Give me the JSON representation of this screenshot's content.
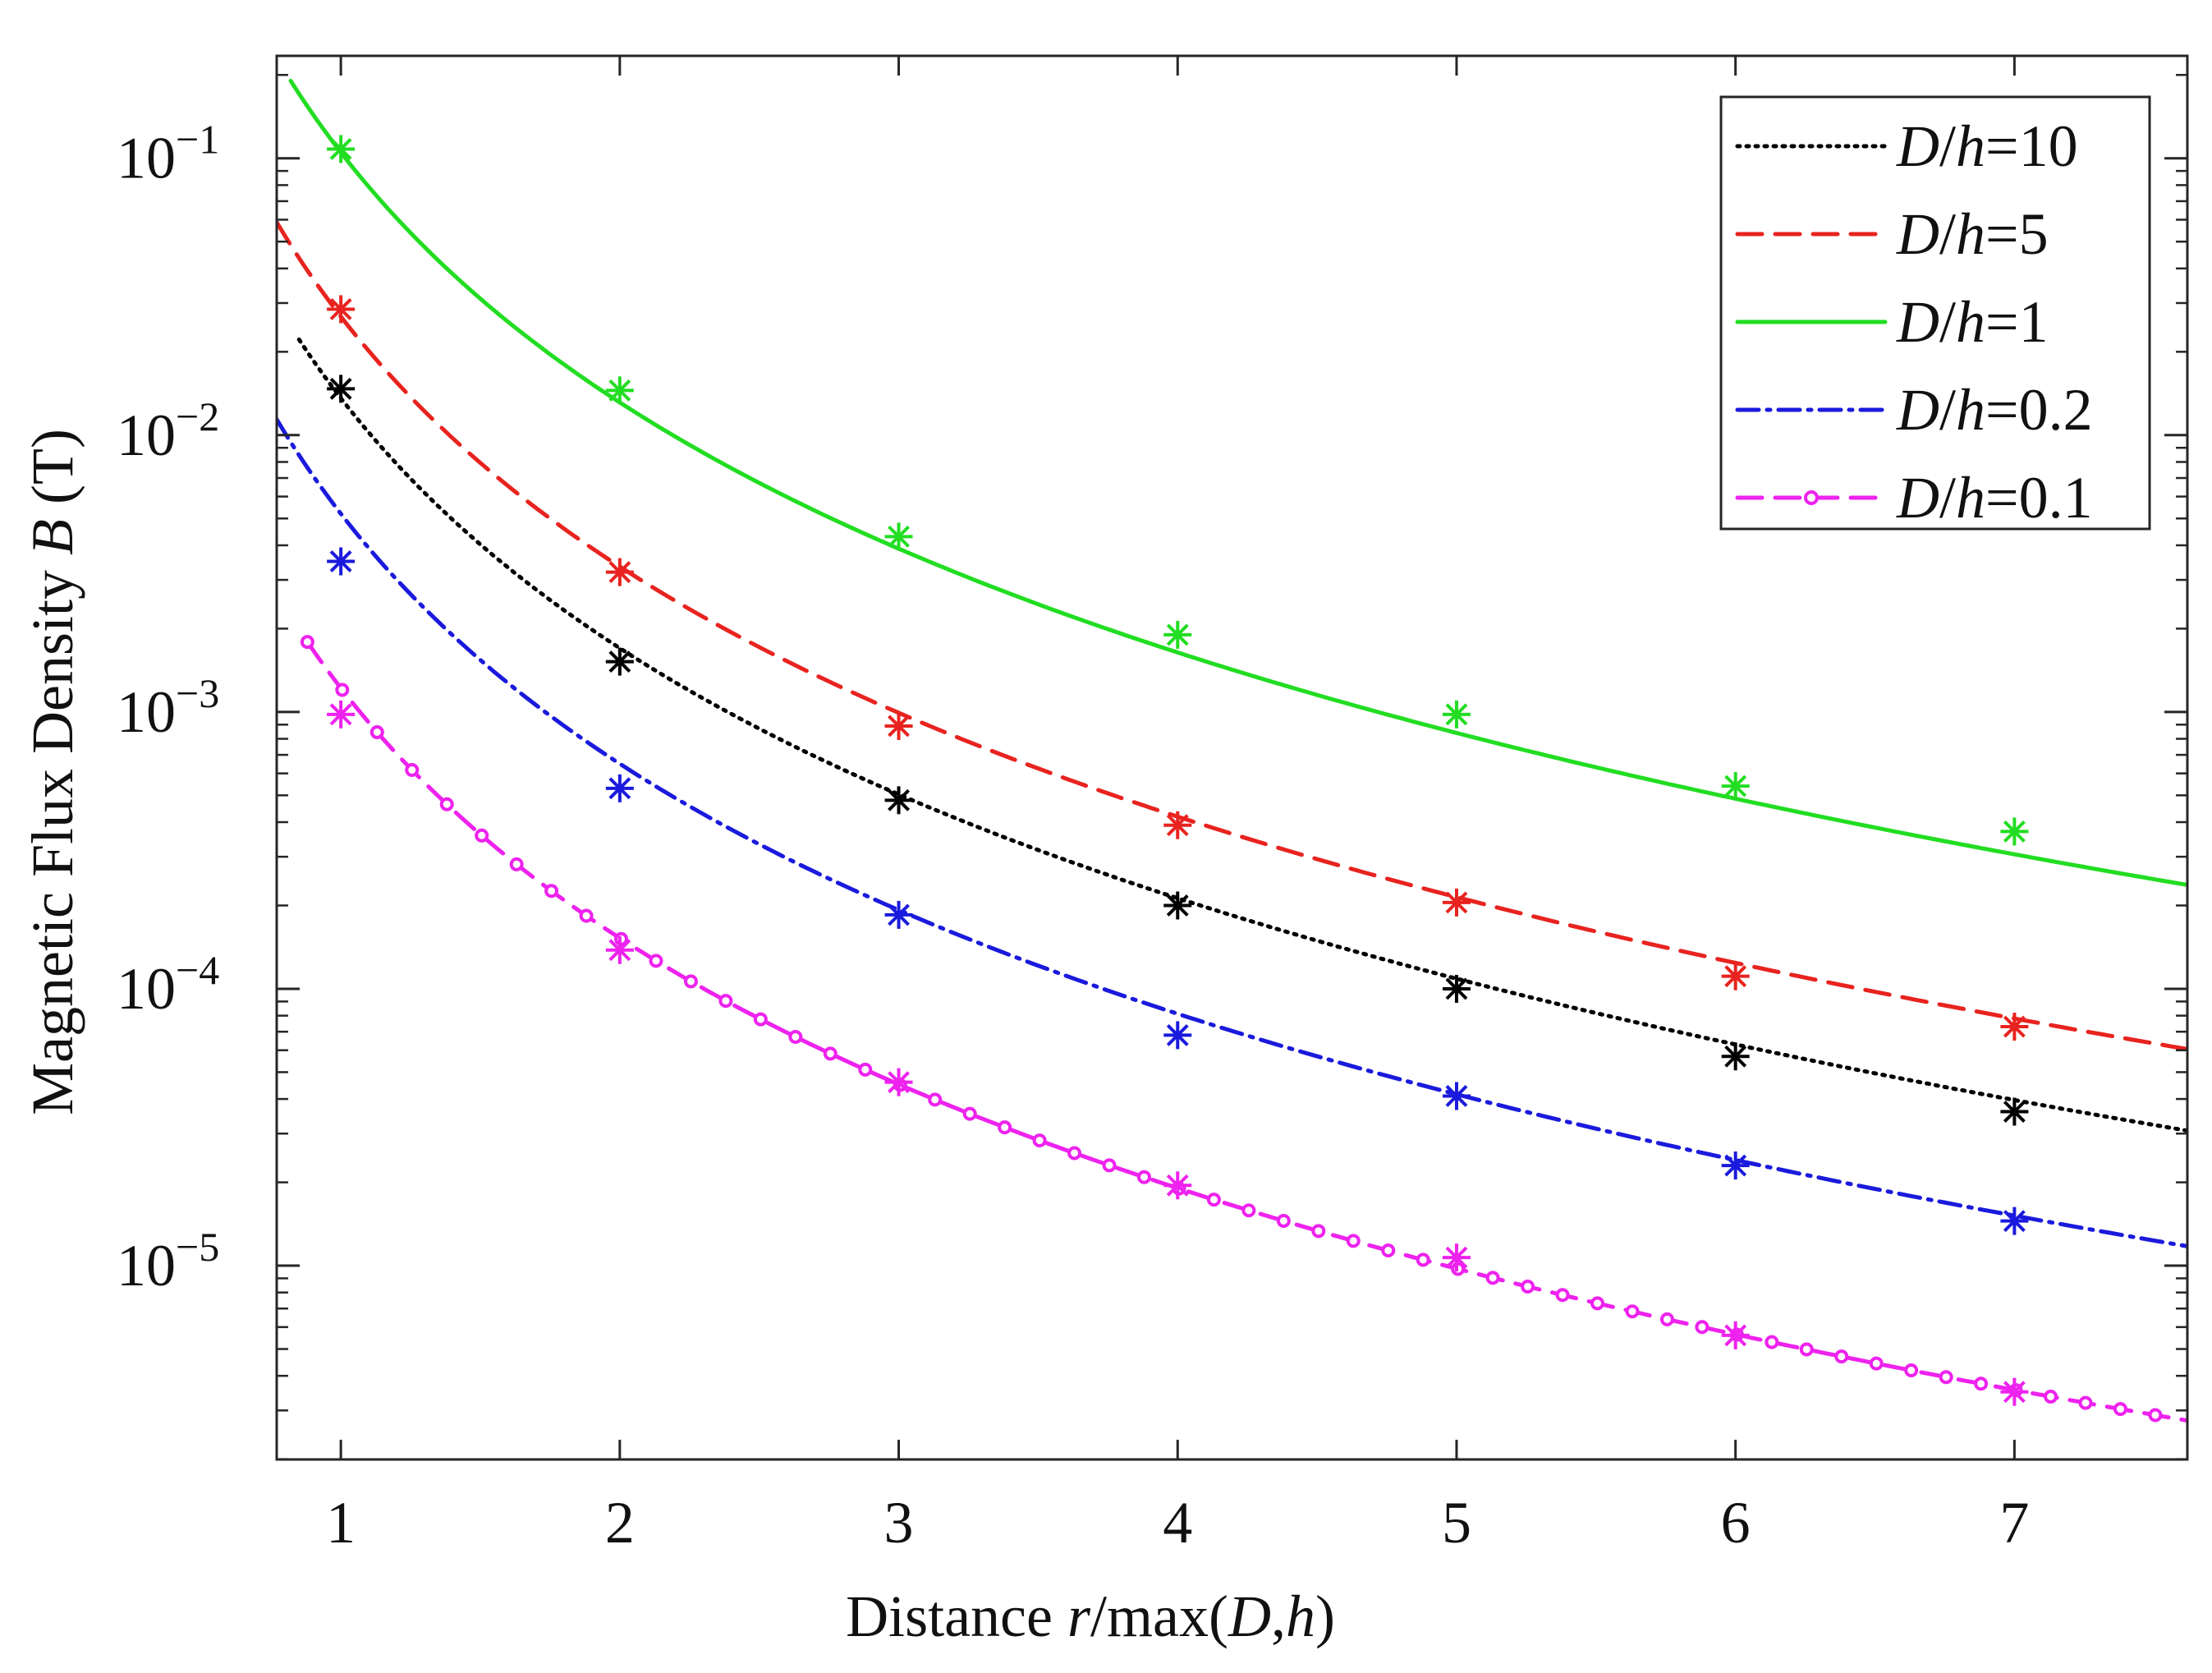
{
  "chart_data": {
    "type": "line",
    "title": "",
    "xlabel": {
      "prefix": "Distance ",
      "r": "r",
      "mid": "/max(",
      "D": "D",
      "comma": ",",
      "h": "h",
      "suffix": ")"
    },
    "ylabel": {
      "prefix": "Magnetic Flux Density ",
      "B": "B",
      "suffix": " (T)"
    },
    "x_scale": "linear",
    "y_scale": "log",
    "xlim": [
      0.77,
      7.62
    ],
    "ylim_exp": [
      -5.7,
      -0.63
    ],
    "x_ticks": [
      1,
      2,
      3,
      4,
      5,
      6,
      7
    ],
    "y_ticks": [
      {
        "base": "10",
        "exp": "−1",
        "value_exp": -1
      },
      {
        "base": "10",
        "exp": "−2",
        "value_exp": -2
      },
      {
        "base": "10",
        "exp": "−3",
        "value_exp": -3
      },
      {
        "base": "10",
        "exp": "−4",
        "value_exp": -4
      },
      {
        "base": "10",
        "exp": "−5",
        "value_exp": -5
      }
    ],
    "grid": false,
    "legend_position": "top-right",
    "series": [
      {
        "name": "D/h=10",
        "label_var": "D",
        "label_sep": "/",
        "label_var2": "h",
        "label_val": "=10",
        "color": "#000000",
        "style": "dotted",
        "coef": 0.0136,
        "x_start": 0.85,
        "markers_circle": false,
        "samples": [
          {
            "x": 1,
            "y": 0.0147
          },
          {
            "x": 2,
            "y": 0.00152
          },
          {
            "x": 3,
            "y": 0.00048
          },
          {
            "x": 4,
            "y": 0.0002
          },
          {
            "x": 5,
            "y": 0.0001
          },
          {
            "x": 6,
            "y": 5.7e-05
          },
          {
            "x": 7,
            "y": 3.6e-05
          }
        ]
      },
      {
        "name": "D/h=5",
        "label_var": "D",
        "label_sep": "/",
        "label_var2": "h",
        "label_val": "=5",
        "color": "#e8231f",
        "style": "dashed",
        "coef": 0.0268,
        "x_start": 0.77,
        "markers_circle": false,
        "samples": [
          {
            "x": 1,
            "y": 0.0285
          },
          {
            "x": 2,
            "y": 0.0032
          },
          {
            "x": 3,
            "y": 0.00089
          },
          {
            "x": 4,
            "y": 0.00039
          },
          {
            "x": 5,
            "y": 0.000205
          },
          {
            "x": 6,
            "y": 0.000111
          },
          {
            "x": 7,
            "y": 7.3e-05
          }
        ]
      },
      {
        "name": "D/h=1",
        "label_var": "D",
        "label_sep": "/",
        "label_var2": "h",
        "label_val": "=1",
        "color": "#22dd22",
        "style": "solid",
        "coef": 0.105,
        "x_start": 0.82,
        "markers_circle": false,
        "samples": [
          {
            "x": 1,
            "y": 0.108
          },
          {
            "x": 2,
            "y": 0.0145
          },
          {
            "x": 3,
            "y": 0.0043
          },
          {
            "x": 4,
            "y": 0.0019
          },
          {
            "x": 5,
            "y": 0.00098
          },
          {
            "x": 6,
            "y": 0.00054
          },
          {
            "x": 7,
            "y": 0.00037
          }
        ]
      },
      {
        "name": "D/h=0.2",
        "label_var": "D",
        "label_sep": "/",
        "label_var2": "h",
        "label_val": "=0.2",
        "color": "#1a1add",
        "style": "dashdot",
        "coef": 0.0052,
        "x_start": 0.77,
        "markers_circle": false,
        "samples": [
          {
            "x": 1,
            "y": 0.0035
          },
          {
            "x": 2,
            "y": 0.00053
          },
          {
            "x": 3,
            "y": 0.000185
          },
          {
            "x": 4,
            "y": 6.8e-05
          },
          {
            "x": 5,
            "y": 4.1e-05
          },
          {
            "x": 6,
            "y": 2.3e-05
          },
          {
            "x": 7,
            "y": 1.45e-05
          }
        ]
      },
      {
        "name": "D/h=0.1",
        "label_var": "D",
        "label_sep": "/",
        "label_var2": "h",
        "label_val": "=0.1",
        "color": "#ee22ee",
        "style": "dashed-circle",
        "coef": 0.00122,
        "x_start": 0.88,
        "markers_circle": true,
        "samples": [
          {
            "x": 1,
            "y": 0.00098
          },
          {
            "x": 2,
            "y": 0.000138
          },
          {
            "x": 3,
            "y": 4.6e-05
          },
          {
            "x": 4,
            "y": 1.95e-05
          },
          {
            "x": 5,
            "y": 1.07e-05
          },
          {
            "x": 6,
            "y": 5.6e-06
          },
          {
            "x": 7,
            "y": 3.5e-06
          }
        ]
      }
    ]
  }
}
